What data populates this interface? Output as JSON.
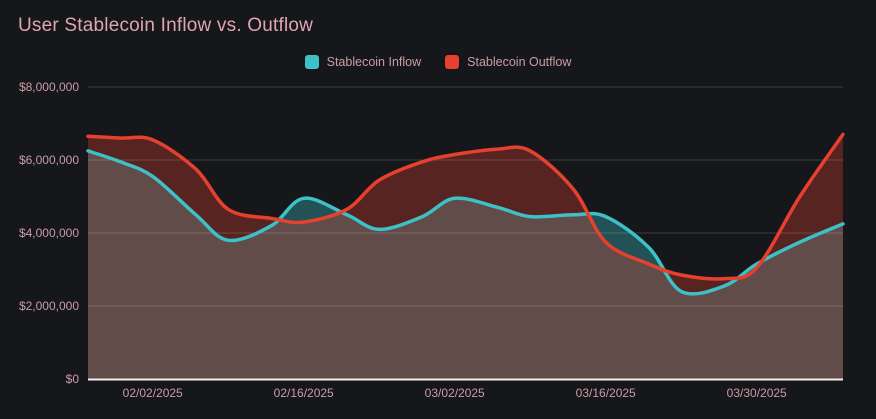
{
  "title": "User Stablecoin Inflow vs. Outflow",
  "legend": {
    "items": [
      {
        "label": "Stablecoin Inflow",
        "color": "#3dc0c6"
      },
      {
        "label": "Stablecoin Outflow",
        "color": "#e6402f"
      }
    ]
  },
  "colors": {
    "background": "#16171b",
    "title_text": "#dfa6ae",
    "axis_label_text": "#c99da3",
    "gridline": "rgba(255,255,255,0.16)",
    "baseline": "#f5efee"
  },
  "chart_data": {
    "type": "area",
    "title": "User Stablecoin Inflow vs. Outflow",
    "x": [
      "01/27/2025",
      "01/30/2025",
      "02/02/2025",
      "02/06/2025",
      "02/09/2025",
      "02/13/2025",
      "02/16/2025",
      "02/20/2025",
      "02/23/2025",
      "02/27/2025",
      "03/02/2025",
      "03/06/2025",
      "03/09/2025",
      "03/13/2025",
      "03/16/2025",
      "03/20/2025",
      "03/23/2025",
      "03/27/2025",
      "03/30/2025",
      "04/03/2025",
      "04/07/2025"
    ],
    "day_offsets": [
      0,
      3,
      6,
      10,
      13,
      17,
      20,
      24,
      27,
      31,
      34,
      38,
      41,
      45,
      48,
      52,
      55,
      59,
      62,
      66,
      70
    ],
    "series": [
      {
        "name": "Stablecoin Inflow",
        "color": "#3dc0c6",
        "fill_opacity": 0.35,
        "values": [
          6250000,
          5950000,
          5550000,
          4500000,
          3800000,
          4200000,
          4950000,
          4500000,
          4100000,
          4450000,
          4950000,
          4700000,
          4450000,
          4500000,
          4450000,
          3600000,
          2400000,
          2550000,
          3150000,
          3750000,
          4250000
        ]
      },
      {
        "name": "Stablecoin Outflow",
        "color": "#e6402f",
        "fill_opacity": 0.32,
        "values": [
          6650000,
          6600000,
          6550000,
          5750000,
          4650000,
          4400000,
          4300000,
          4650000,
          5450000,
          5950000,
          6150000,
          6300000,
          6250000,
          5200000,
          3750000,
          3150000,
          2850000,
          2750000,
          3050000,
          5000000,
          6700000
        ]
      }
    ],
    "x_ticks": [
      {
        "label": "02/02/2025",
        "day": 6
      },
      {
        "label": "02/16/2025",
        "day": 20
      },
      {
        "label": "03/02/2025",
        "day": 34
      },
      {
        "label": "03/16/2025",
        "day": 48
      },
      {
        "label": "03/30/2025",
        "day": 62
      }
    ],
    "y_ticks": [
      {
        "value": 0,
        "label": "$0"
      },
      {
        "value": 2000000,
        "label": "$2,000,000"
      },
      {
        "value": 4000000,
        "label": "$4,000,000"
      },
      {
        "value": 6000000,
        "label": "$6,000,000"
      },
      {
        "value": 8000000,
        "label": "$8,000,000"
      }
    ],
    "ylim": [
      0,
      8000000
    ],
    "grid": true,
    "legend_position": "top"
  }
}
